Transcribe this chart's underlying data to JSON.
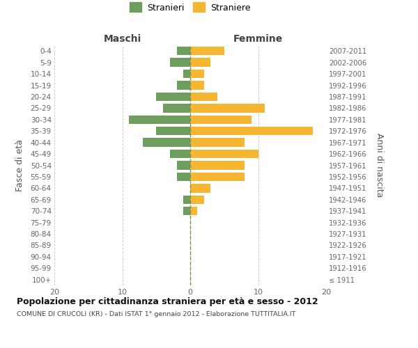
{
  "age_groups": [
    "100+",
    "95-99",
    "90-94",
    "85-89",
    "80-84",
    "75-79",
    "70-74",
    "65-69",
    "60-64",
    "55-59",
    "50-54",
    "45-49",
    "40-44",
    "35-39",
    "30-34",
    "25-29",
    "20-24",
    "15-19",
    "10-14",
    "5-9",
    "0-4"
  ],
  "birth_years": [
    "≤ 1911",
    "1912-1916",
    "1917-1921",
    "1922-1926",
    "1927-1931",
    "1932-1936",
    "1937-1941",
    "1942-1946",
    "1947-1951",
    "1952-1956",
    "1957-1961",
    "1962-1966",
    "1967-1971",
    "1972-1976",
    "1977-1981",
    "1982-1986",
    "1987-1991",
    "1992-1996",
    "1997-2001",
    "2002-2006",
    "2007-2011"
  ],
  "maschi": [
    0,
    0,
    0,
    0,
    0,
    0,
    1,
    1,
    0,
    2,
    2,
    3,
    7,
    5,
    9,
    4,
    5,
    2,
    1,
    3,
    2
  ],
  "femmine": [
    0,
    0,
    0,
    0,
    0,
    0,
    1,
    2,
    3,
    8,
    8,
    10,
    8,
    18,
    9,
    11,
    4,
    2,
    2,
    3,
    5
  ],
  "maschi_color": "#6d9e5e",
  "femmine_color": "#f5b731",
  "title": "Popolazione per cittadinanza straniera per età e sesso - 2012",
  "subtitle": "COMUNE DI CRUCOLI (KR) - Dati ISTAT 1° gennaio 2012 - Elaborazione TUTTITALIA.IT",
  "left_label": "Maschi",
  "right_label": "Femmine",
  "left_axis_label": "Fasce di età",
  "right_axis_label": "Anni di nascita",
  "legend_maschi": "Stranieri",
  "legend_femmine": "Straniere",
  "xlim": 20,
  "background_color": "#ffffff",
  "grid_color": "#cccccc",
  "bar_height": 0.75
}
